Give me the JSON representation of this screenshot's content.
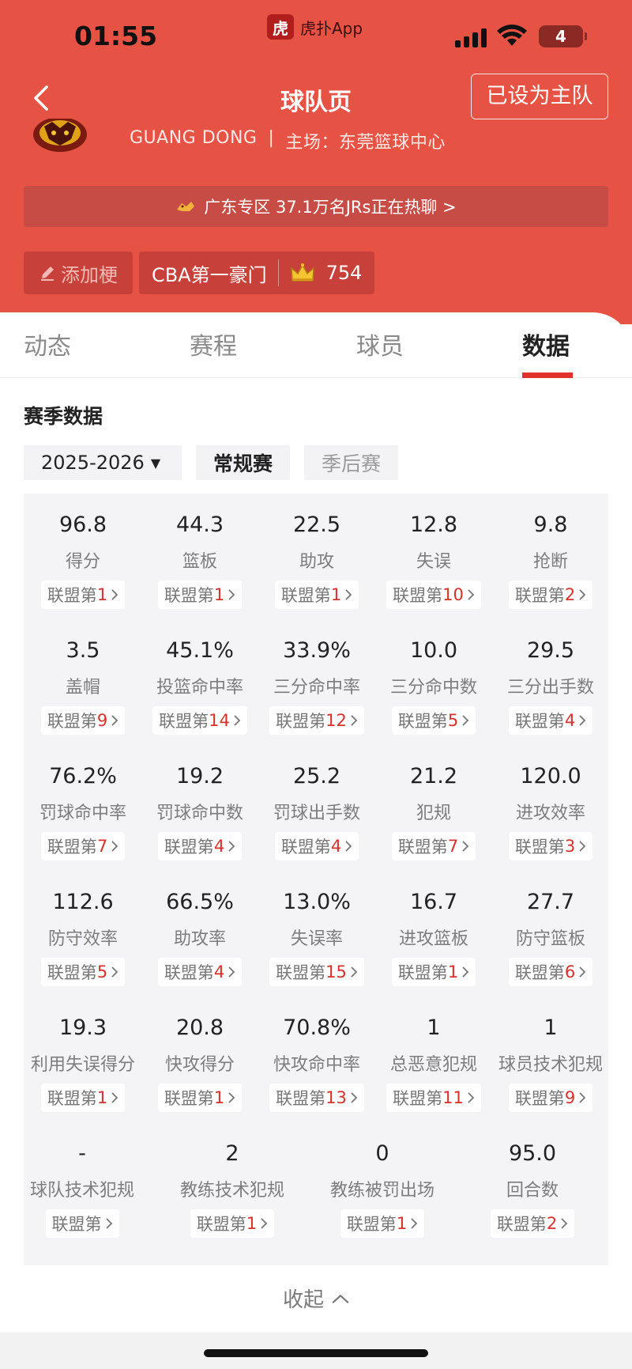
{
  "status_bar": {
    "time": "01:55",
    "app_name": "虎扑App",
    "app_logo_char": "虎",
    "battery": "4"
  },
  "header": {
    "title": "球队页",
    "home_button": "已设为主队",
    "team_name": "GUANG DONG",
    "separator": "|",
    "home_venue": "主场：东莞篮球中心",
    "forum_banner": "广东专区 37.1万名JRs正在热聊 >",
    "tag_add": "添加梗",
    "tag_main": "CBA第一豪门",
    "crown_count": "754"
  },
  "tabs": [
    {
      "label": "动态"
    },
    {
      "label": "赛程"
    },
    {
      "label": "球员"
    },
    {
      "label": "数据",
      "active": true
    }
  ],
  "section": {
    "title": "赛季数据",
    "season": "2025-2026",
    "regular": "常规赛",
    "playoff": "季后赛"
  },
  "rank_prefix": "联盟第",
  "stats": [
    {
      "value": "96.8",
      "label": "得分",
      "rank": "1"
    },
    {
      "value": "44.3",
      "label": "篮板",
      "rank": "1"
    },
    {
      "value": "22.5",
      "label": "助攻",
      "rank": "1"
    },
    {
      "value": "12.8",
      "label": "失误",
      "rank": "10"
    },
    {
      "value": "9.8",
      "label": "抢断",
      "rank": "2"
    },
    {
      "value": "3.5",
      "label": "盖帽",
      "rank": "9"
    },
    {
      "value": "45.1%",
      "label": "投篮命中率",
      "rank": "14"
    },
    {
      "value": "33.9%",
      "label": "三分命中率",
      "rank": "12"
    },
    {
      "value": "10.0",
      "label": "三分命中数",
      "rank": "5"
    },
    {
      "value": "29.5",
      "label": "三分出手数",
      "rank": "4"
    },
    {
      "value": "76.2%",
      "label": "罚球命中率",
      "rank": "7"
    },
    {
      "value": "19.2",
      "label": "罚球命中数",
      "rank": "4"
    },
    {
      "value": "25.2",
      "label": "罚球出手数",
      "rank": "4"
    },
    {
      "value": "21.2",
      "label": "犯规",
      "rank": "7"
    },
    {
      "value": "120.0",
      "label": "进攻效率",
      "rank": "3"
    },
    {
      "value": "112.6",
      "label": "防守效率",
      "rank": "5"
    },
    {
      "value": "66.5%",
      "label": "助攻率",
      "rank": "4"
    },
    {
      "value": "13.0%",
      "label": "失误率",
      "rank": "15"
    },
    {
      "value": "16.7",
      "label": "进攻篮板",
      "rank": "1"
    },
    {
      "value": "27.7",
      "label": "防守篮板",
      "rank": "6"
    },
    {
      "value": "19.3",
      "label": "利用失误得分",
      "rank": "1"
    },
    {
      "value": "20.8",
      "label": "快攻得分",
      "rank": "1"
    },
    {
      "value": "70.8%",
      "label": "快攻命中率",
      "rank": "13"
    },
    {
      "value": "1",
      "label": "总恶意犯规",
      "rank": "11"
    },
    {
      "value": "1",
      "label": "球员技术犯规",
      "rank": "9"
    },
    {
      "value": "-",
      "label": "球队技术犯规",
      "rank": ""
    },
    {
      "value": "2",
      "label": "教练技术犯规",
      "rank": "1"
    },
    {
      "value": "0",
      "label": "教练被罚出场",
      "rank": "1"
    },
    {
      "value": "95.0",
      "label": "回合数",
      "rank": "2"
    }
  ],
  "collapse_label": "收起",
  "colors": {
    "header_bg": "#e65244",
    "accent_red": "#e0312c",
    "rank_red": "#d9302b"
  }
}
